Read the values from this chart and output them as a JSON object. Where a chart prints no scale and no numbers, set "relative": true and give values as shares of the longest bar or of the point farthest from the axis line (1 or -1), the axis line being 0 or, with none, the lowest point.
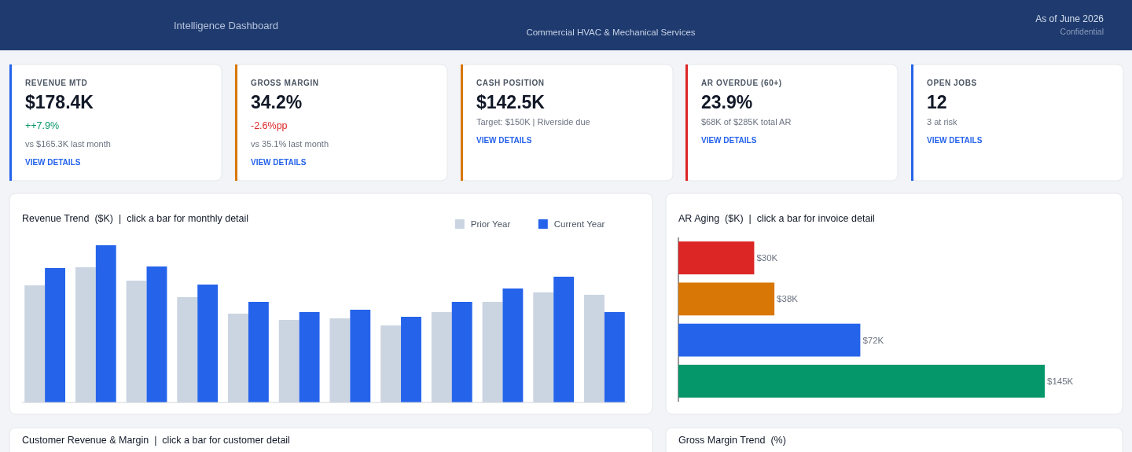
{
  "chart_data": [
    {
      "type": "other",
      "title": "Intelligence Dashboard",
      "subtitle": "Commercial HVAC & Mechanical Services",
      "annotations": [
        "As of June 2026",
        "Confidential"
      ]
    },
    {
      "type": "other",
      "title": "REVENUE MTD",
      "subtitle": "$178.4K",
      "color": "#2563eb",
      "annotations": [
        "++7.9%",
        "vs $165.3K last month",
        "VIEW DETAILS"
      ],
      "colors": [
        "#059669",
        "#6b7280",
        "#2563eb"
      ]
    },
    {
      "type": "other",
      "title": "GROSS MARGIN",
      "subtitle": "34.2%",
      "color": "#d97706",
      "annotations": [
        "-2.6%pp",
        "vs 35.1% last month",
        "VIEW DETAILS"
      ],
      "colors": [
        "#dc2626",
        "#6b7280",
        "#2563eb"
      ]
    },
    {
      "type": "other",
      "title": "CASH POSITION",
      "subtitle": "$142.5K",
      "color": "#d97706",
      "annotations": [
        "Target: $150K | Riverside due",
        "VIEW DETAILS"
      ],
      "colors": [
        "#6b7280",
        "#2563eb"
      ]
    },
    {
      "type": "other",
      "title": "AR OVERDUE (60+)",
      "subtitle": "23.9%",
      "color": "#dc2626",
      "annotations": [
        "$68K of $285K total AR",
        "VIEW DETAILS"
      ],
      "colors": [
        "#6b7280",
        "#2563eb"
      ]
    },
    {
      "type": "other",
      "title": "OPEN JOBS",
      "subtitle": "12",
      "color": "#2563eb",
      "annotations": [
        "3 at risk",
        "VIEW DETAILS"
      ],
      "colors": [
        "#6b7280",
        "#2563eb"
      ]
    },
    {
      "type": "bar",
      "title": "Revenue Trend  ($K)  |  click a bar for monthly detail",
      "relative": true,
      "legend": "top right",
      "categories": [
        null,
        null,
        null,
        null,
        null,
        null,
        null,
        null,
        null,
        null,
        null,
        null
      ],
      "series": [
        {
          "name": "Prior Year",
          "color": "#cbd5e1",
          "values": [
            0.745,
            0.86,
            0.775,
            0.67,
            0.565,
            0.525,
            0.535,
            0.49,
            0.575,
            0.64,
            0.7,
            0.685
          ]
        },
        {
          "name": "Current Year",
          "color": "#2563eb",
          "values": [
            0.855,
            1,
            0.865,
            0.75,
            0.64,
            0.575,
            0.59,
            0.545,
            0.64,
            0.725,
            0.8,
            0.575
          ]
        }
      ]
    },
    {
      "type": "bar",
      "orientation": "horizontal",
      "title": "AR Aging  ($K)  |  click a bar for invoice detail",
      "categories": [
        null,
        null,
        null,
        null
      ],
      "values": [
        30,
        38,
        72,
        145
      ],
      "colors": [
        "#dc2626",
        "#d97706",
        "#2563eb",
        "#059669"
      ],
      "value_labels": [
        "$30K",
        "$38K",
        "$72K",
        "$145K"
      ]
    },
    {
      "type": "other",
      "title": "Customer Revenue & Margin  |  click a bar for customer detail"
    },
    {
      "type": "other",
      "title": "Gross Margin Trend  (%)"
    }
  ]
}
